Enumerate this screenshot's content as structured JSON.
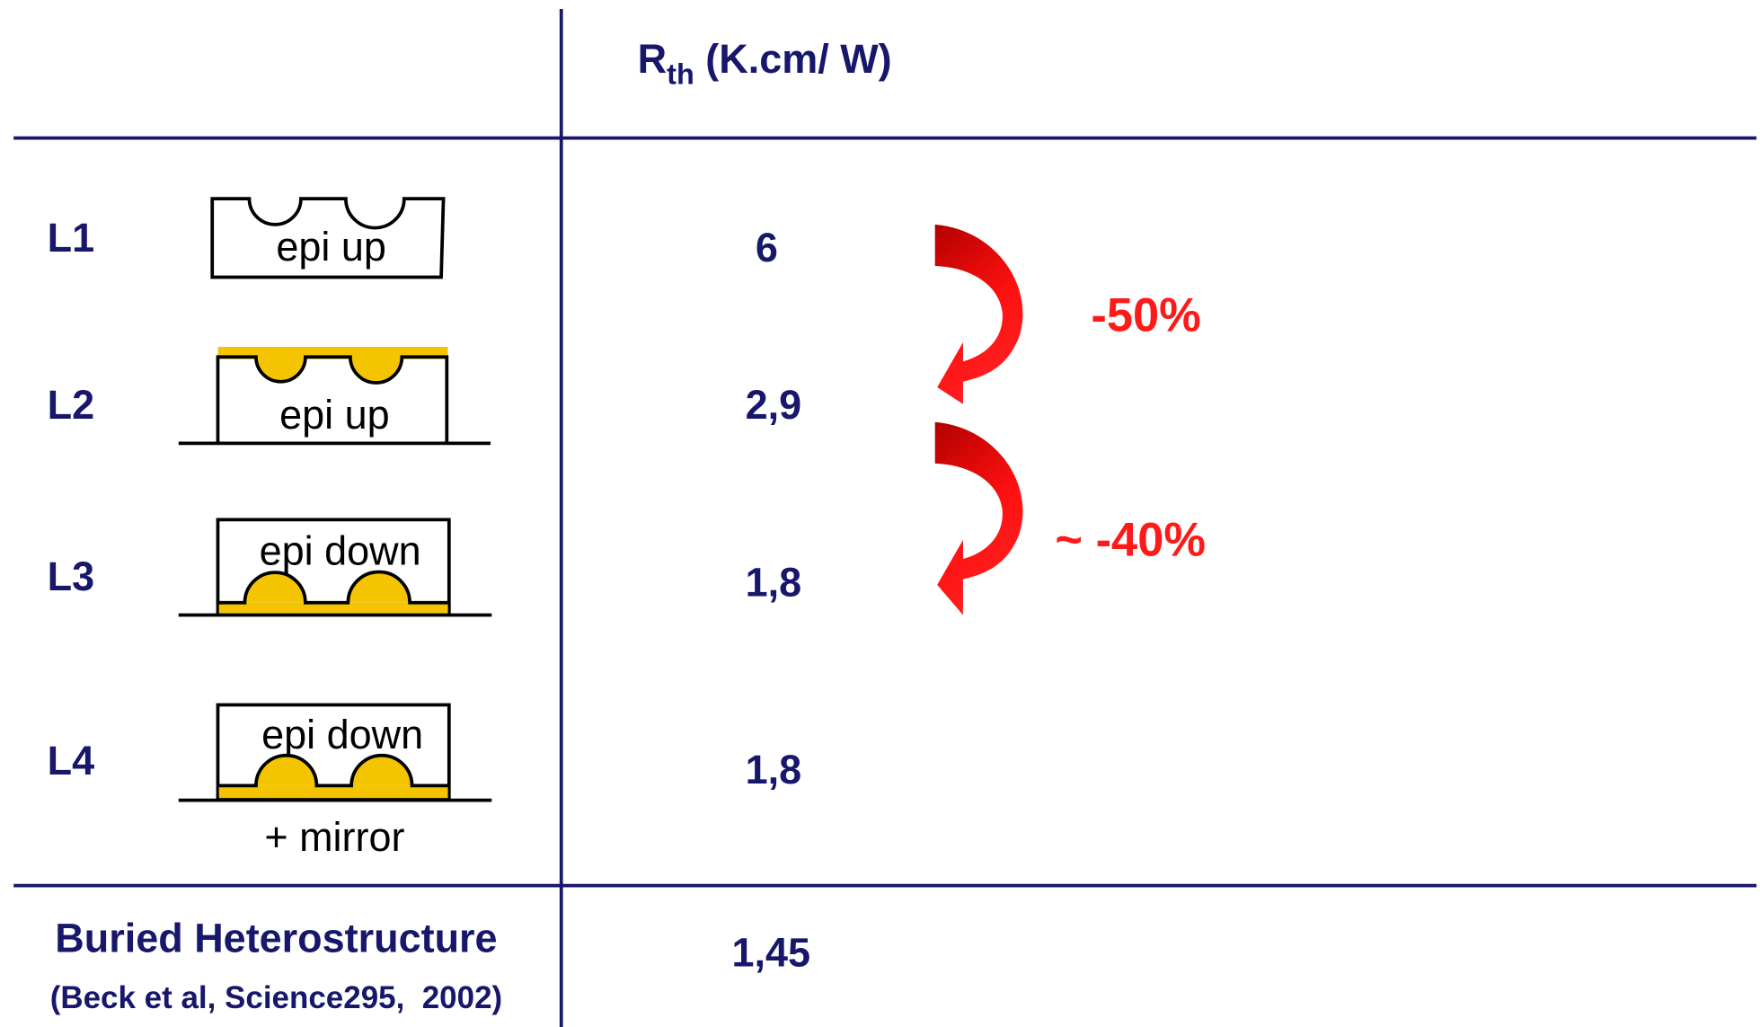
{
  "header": {
    "symbol": "R",
    "subscript": "th",
    "unit": "(K.cm/ W)"
  },
  "table": {
    "rows": [
      {
        "label": "L1",
        "diagram": "epi up",
        "value": "6"
      },
      {
        "label": "L2",
        "diagram": "epi up",
        "value": "2,9"
      },
      {
        "label": "L3",
        "diagram": "epi down",
        "value": "1,8"
      },
      {
        "label": "L4",
        "diagram": "epi down",
        "note": "+ mirror",
        "value": "1,8"
      }
    ]
  },
  "reference": {
    "label": "Buried Heterostructure",
    "citation": "(Beck et al, Science295,  2002)",
    "value": "1,45"
  },
  "annotations": [
    "-50%",
    "~ -40%"
  ]
}
